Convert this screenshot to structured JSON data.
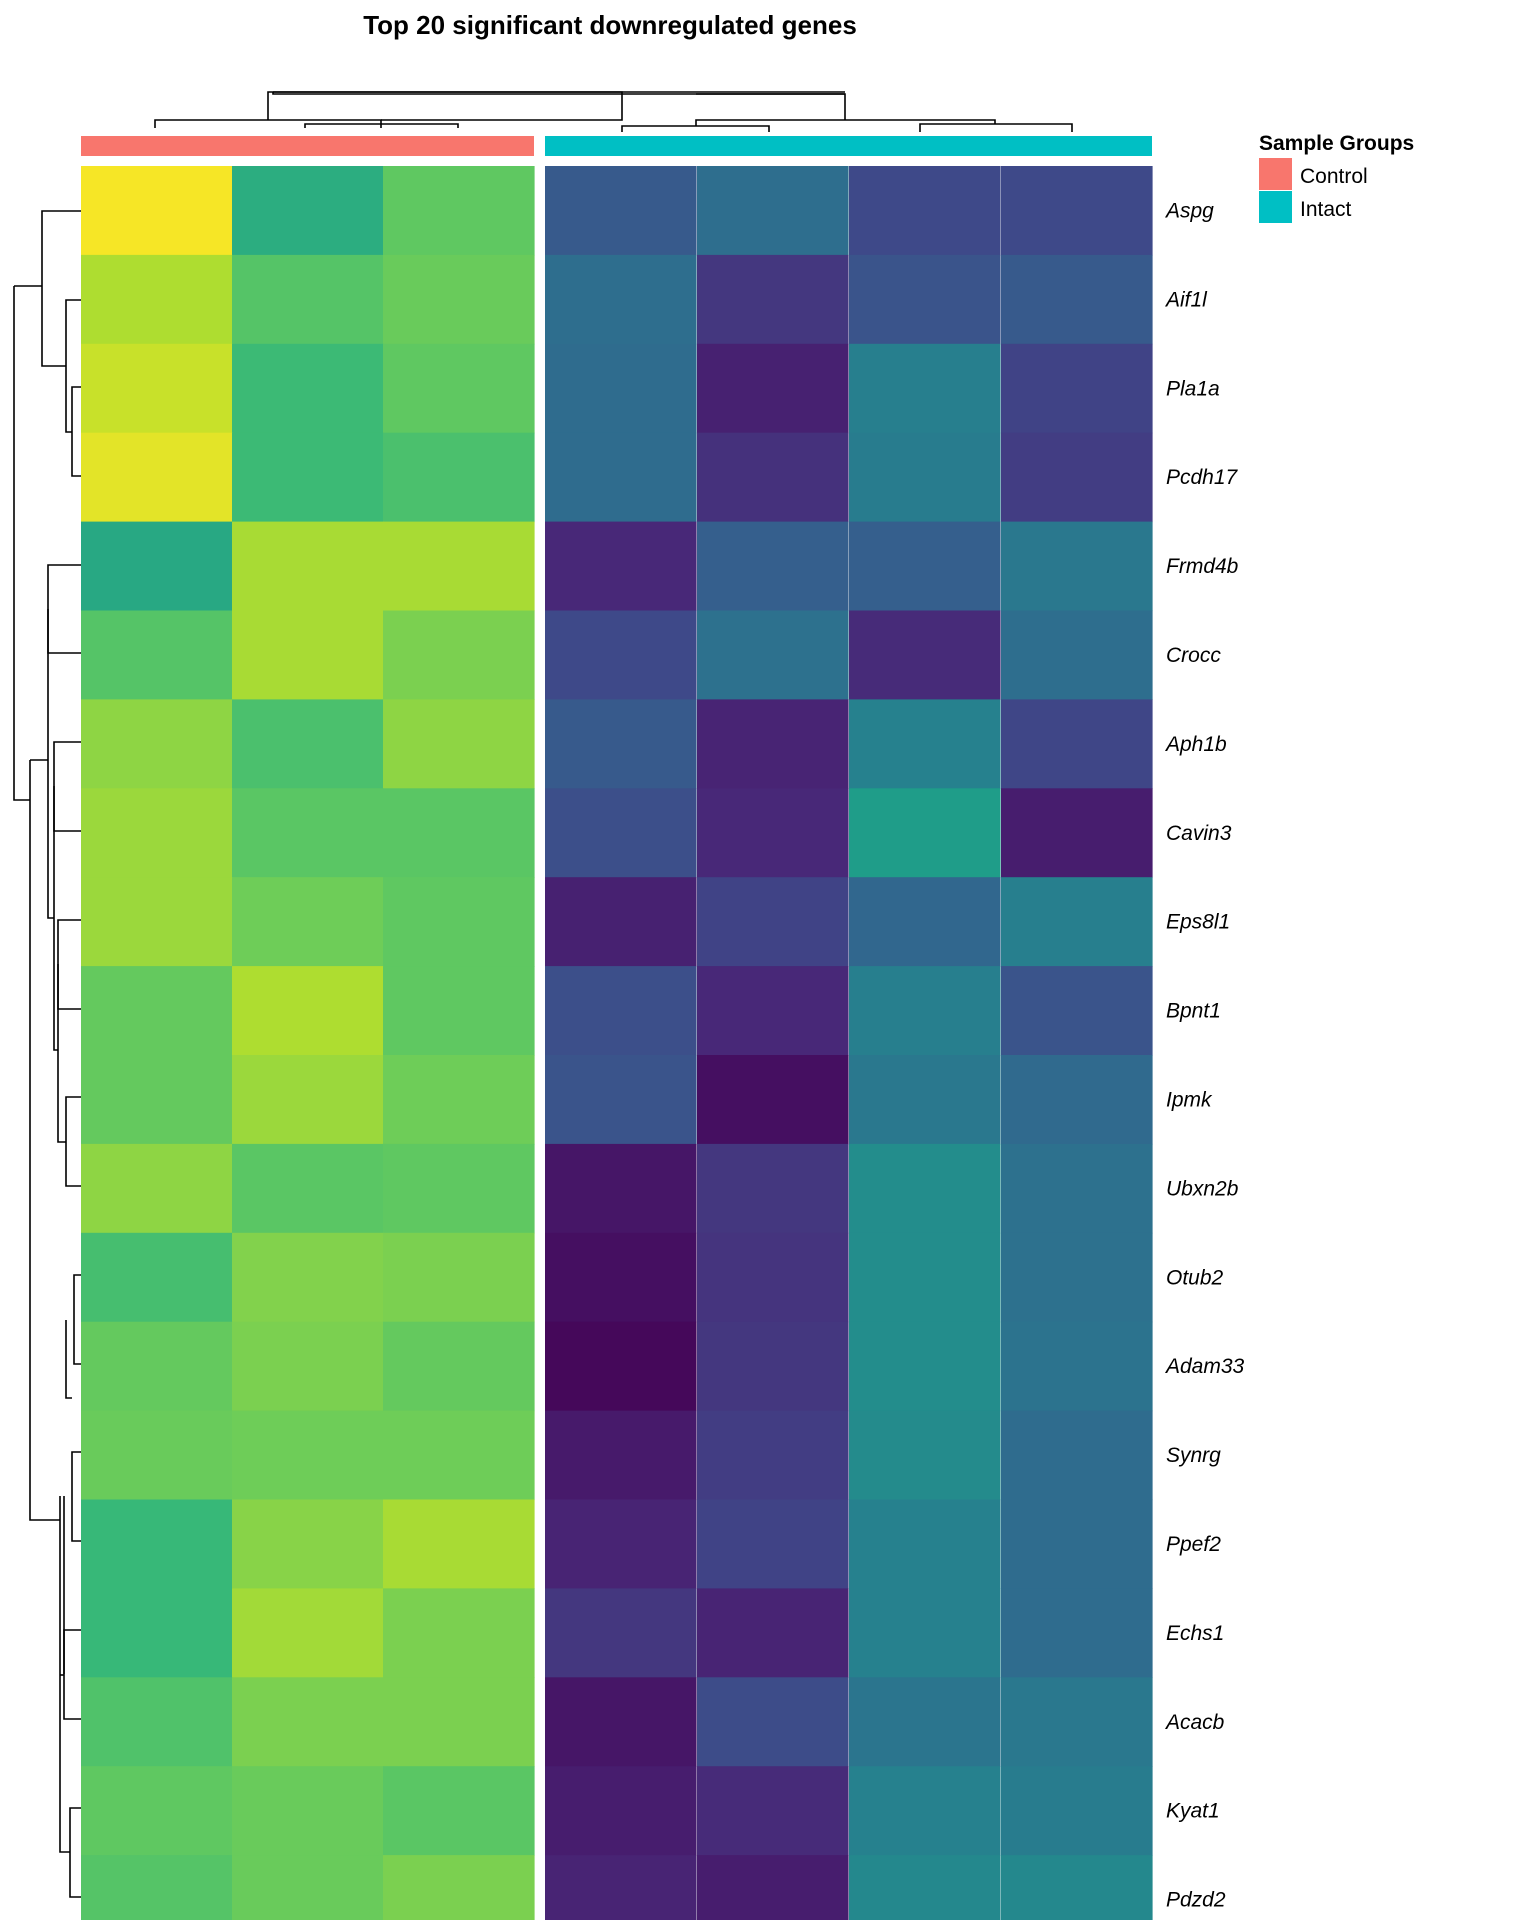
{
  "chart_data": {
    "type": "heatmap",
    "title": "Top 20 significant downregulated genes",
    "colormap": "viridis",
    "color_range": [
      0,
      1
    ],
    "samples": [
      {
        "group": "Control"
      },
      {
        "group": "Control"
      },
      {
        "group": "Control"
      },
      {
        "group": "Intact"
      },
      {
        "group": "Intact"
      },
      {
        "group": "Intact"
      },
      {
        "group": "Intact"
      }
    ],
    "genes": [
      "Aspg",
      "Aif1l",
      "Pla1a",
      "Pcdh17",
      "Frmd4b",
      "Crocc",
      "Aph1b",
      "Cavin3",
      "Eps8l1",
      "Bpnt1",
      "Ipmk",
      "Ubxn2b",
      "Otub2",
      "Adam33",
      "Synrg",
      "Ppef2",
      "Echs1",
      "Acacb",
      "Kyat1",
      "Pdzd2"
    ],
    "values": [
      [
        0.99,
        0.62,
        0.75,
        0.28,
        0.36,
        0.22,
        0.22
      ],
      [
        0.88,
        0.73,
        0.77,
        0.36,
        0.16,
        0.26,
        0.28
      ],
      [
        0.92,
        0.68,
        0.75,
        0.35,
        0.09,
        0.43,
        0.2
      ],
      [
        0.96,
        0.68,
        0.71,
        0.35,
        0.14,
        0.42,
        0.18
      ],
      [
        0.6,
        0.87,
        0.87,
        0.11,
        0.3,
        0.3,
        0.4
      ],
      [
        0.73,
        0.87,
        0.8,
        0.22,
        0.37,
        0.12,
        0.36
      ],
      [
        0.83,
        0.71,
        0.83,
        0.28,
        0.1,
        0.44,
        0.21
      ],
      [
        0.85,
        0.74,
        0.74,
        0.24,
        0.11,
        0.55,
        0.08
      ],
      [
        0.85,
        0.78,
        0.75,
        0.09,
        0.2,
        0.33,
        0.43
      ],
      [
        0.76,
        0.88,
        0.75,
        0.24,
        0.11,
        0.43,
        0.26
      ],
      [
        0.76,
        0.85,
        0.78,
        0.26,
        0.04,
        0.4,
        0.34
      ],
      [
        0.83,
        0.74,
        0.75,
        0.06,
        0.16,
        0.49,
        0.37
      ],
      [
        0.7,
        0.81,
        0.8,
        0.04,
        0.15,
        0.49,
        0.37
      ],
      [
        0.76,
        0.8,
        0.76,
        0.02,
        0.16,
        0.49,
        0.38
      ],
      [
        0.77,
        0.78,
        0.78,
        0.07,
        0.18,
        0.48,
        0.35
      ],
      [
        0.67,
        0.82,
        0.87,
        0.1,
        0.2,
        0.44,
        0.35
      ],
      [
        0.67,
        0.86,
        0.8,
        0.16,
        0.1,
        0.44,
        0.35
      ],
      [
        0.72,
        0.8,
        0.8,
        0.06,
        0.23,
        0.39,
        0.4
      ],
      [
        0.75,
        0.77,
        0.74,
        0.08,
        0.12,
        0.44,
        0.42
      ],
      [
        0.73,
        0.77,
        0.8,
        0.1,
        0.08,
        0.47,
        0.47
      ]
    ],
    "legend": {
      "title": "Sample Groups",
      "entries": [
        {
          "label": "Control",
          "color": "#F8766D"
        },
        {
          "label": "Intact",
          "color": "#00BFC4"
        }
      ],
      "position": "top-right"
    }
  }
}
